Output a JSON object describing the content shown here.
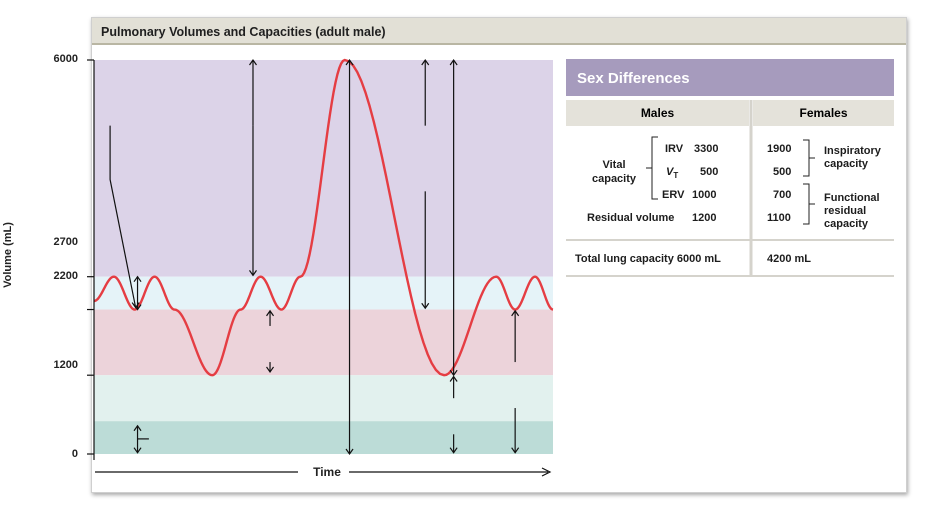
{
  "header": {
    "title": "Pulmonary Volumes and Capacities (adult male)"
  },
  "chart_data": {
    "type": "line",
    "title": "Pulmonary Volumes and Capacities (adult male)",
    "xlabel": "Time",
    "ylabel": "Volume (mL)",
    "ylim": [
      0,
      6000
    ],
    "yticks": [
      6000,
      2700,
      2200,
      1200,
      0
    ],
    "bands": [
      {
        "from": 2700,
        "to": 6000,
        "color": "#dcd3e8"
      },
      {
        "from": 2200,
        "to": 2700,
        "color": "#e5f3f8"
      },
      {
        "from": 1200,
        "to": 2200,
        "color": "#ecd3da"
      },
      {
        "from": 500,
        "to": 1200,
        "color": "#e2f1ee"
      },
      {
        "from": 0,
        "to": 500,
        "color": "#bcdcd7"
      }
    ],
    "series": [
      {
        "color": "#e53d43",
        "points": [
          [
            0,
            2330
          ],
          [
            2.1,
            2700
          ],
          [
            4.3,
            2200
          ],
          [
            6.4,
            2700
          ],
          [
            8.5,
            2200
          ],
          [
            12.5,
            1200
          ],
          [
            15.5,
            2200
          ],
          [
            17.6,
            2700
          ],
          [
            19.8,
            2200
          ],
          [
            21.8,
            2700
          ],
          [
            26.5,
            6000
          ],
          [
            37.0,
            1200
          ],
          [
            42.5,
            2700
          ],
          [
            44.5,
            2200
          ],
          [
            46.6,
            2700
          ],
          [
            48.5,
            2200
          ]
        ]
      }
    ]
  },
  "sex_differences": {
    "title": "Sex Differences",
    "col_males": "Males",
    "col_females": "Females",
    "vital_capacity": "Vital\ncapacity",
    "irv_label": "IRV",
    "irv_male": "3300",
    "vt_label": "V",
    "vt_sub": "T",
    "vt_male": "500",
    "erv_label": "ERV",
    "erv_male": "1000",
    "residual_label": "Residual volume",
    "residual_male": "1200",
    "irv_female": "1900",
    "vt_female": "500",
    "erv_female": "700",
    "residual_female": "1100",
    "inspiratory_capacity": "Inspiratory\ncapacity",
    "functional_residual": "Functional\nresidual\ncapacity",
    "total_label": "Total lung capacity 6000 mL",
    "total_female": "4200 mL"
  },
  "colors": {
    "curve": "#e53d43",
    "header_bg": "#e2e0d6",
    "sex_title_bg": "#a69bbd"
  }
}
